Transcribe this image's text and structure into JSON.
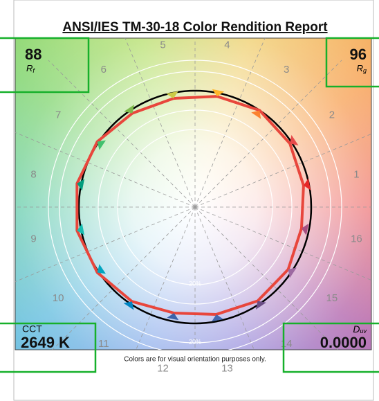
{
  "header": {
    "title": "ANSI/IES TM-30-18 Color Rendition Report"
  },
  "metrics": {
    "rf": {
      "value": "88",
      "symbol": "R",
      "subscript": "f"
    },
    "rg": {
      "value": "96",
      "symbol": "R",
      "subscript": "g"
    },
    "cct": {
      "label": "CCT",
      "value": "2649 K"
    },
    "duv": {
      "symbol": "D",
      "subscript": "uv",
      "value": "0.0000"
    }
  },
  "graphic": {
    "hue_bins": [
      "1",
      "2",
      "3",
      "4",
      "5",
      "6",
      "7",
      "8",
      "9",
      "10",
      "11",
      "12",
      "13",
      "14",
      "15",
      "16"
    ],
    "ring_labels": [
      "20%",
      "20%"
    ]
  },
  "footer": {
    "note": "Colors are for visual orientation purposes only."
  }
}
